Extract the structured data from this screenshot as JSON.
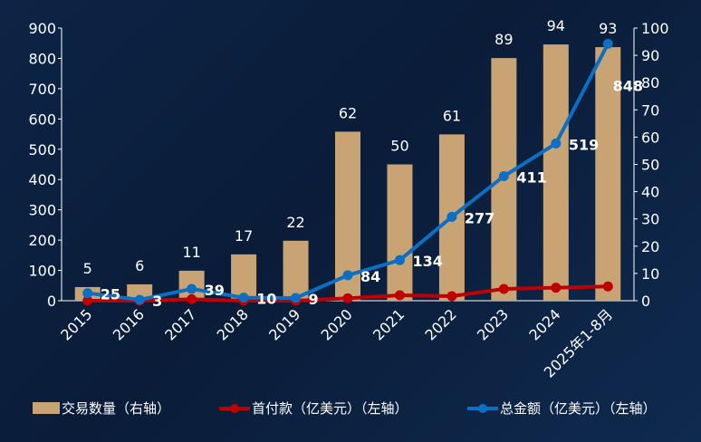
{
  "chart_data": {
    "type": "bar+line",
    "categories": [
      "2015",
      "2016",
      "2017",
      "2018",
      "2019",
      "2020",
      "2021",
      "2022",
      "2023",
      "2024",
      "2025年1-8月"
    ],
    "series": [
      {
        "name": "交易数量（右轴）",
        "type": "bar",
        "axis": "right",
        "color": "#c8a374",
        "values": [
          5,
          6,
          11,
          17,
          22,
          62,
          50,
          61,
          89,
          94,
          93
        ]
      },
      {
        "name": "首付款（亿美元）（左轴）",
        "type": "line",
        "axis": "left",
        "color": "#c00000",
        "values": [
          0,
          0,
          5,
          0,
          0,
          8,
          18,
          15,
          39,
          43,
          47
        ]
      },
      {
        "name": "总金额（亿美元）（左轴）",
        "type": "line",
        "axis": "left",
        "color": "#0b6fc4",
        "values": [
          25,
          3,
          39,
          10,
          9,
          84,
          134,
          277,
          411,
          519,
          848
        ]
      }
    ],
    "left_axis": {
      "ylim": [
        0,
        900
      ],
      "ticks": [
        "0",
        "100",
        "200",
        "300",
        "400",
        "500",
        "600",
        "700",
        "800",
        "900"
      ]
    },
    "right_axis": {
      "ylim": [
        0,
        100
      ],
      "ticks": [
        "0",
        "10",
        "20",
        "30",
        "40",
        "50",
        "60",
        "70",
        "80",
        "90",
        "100"
      ]
    },
    "grid": false,
    "legend_position": "bottom"
  }
}
